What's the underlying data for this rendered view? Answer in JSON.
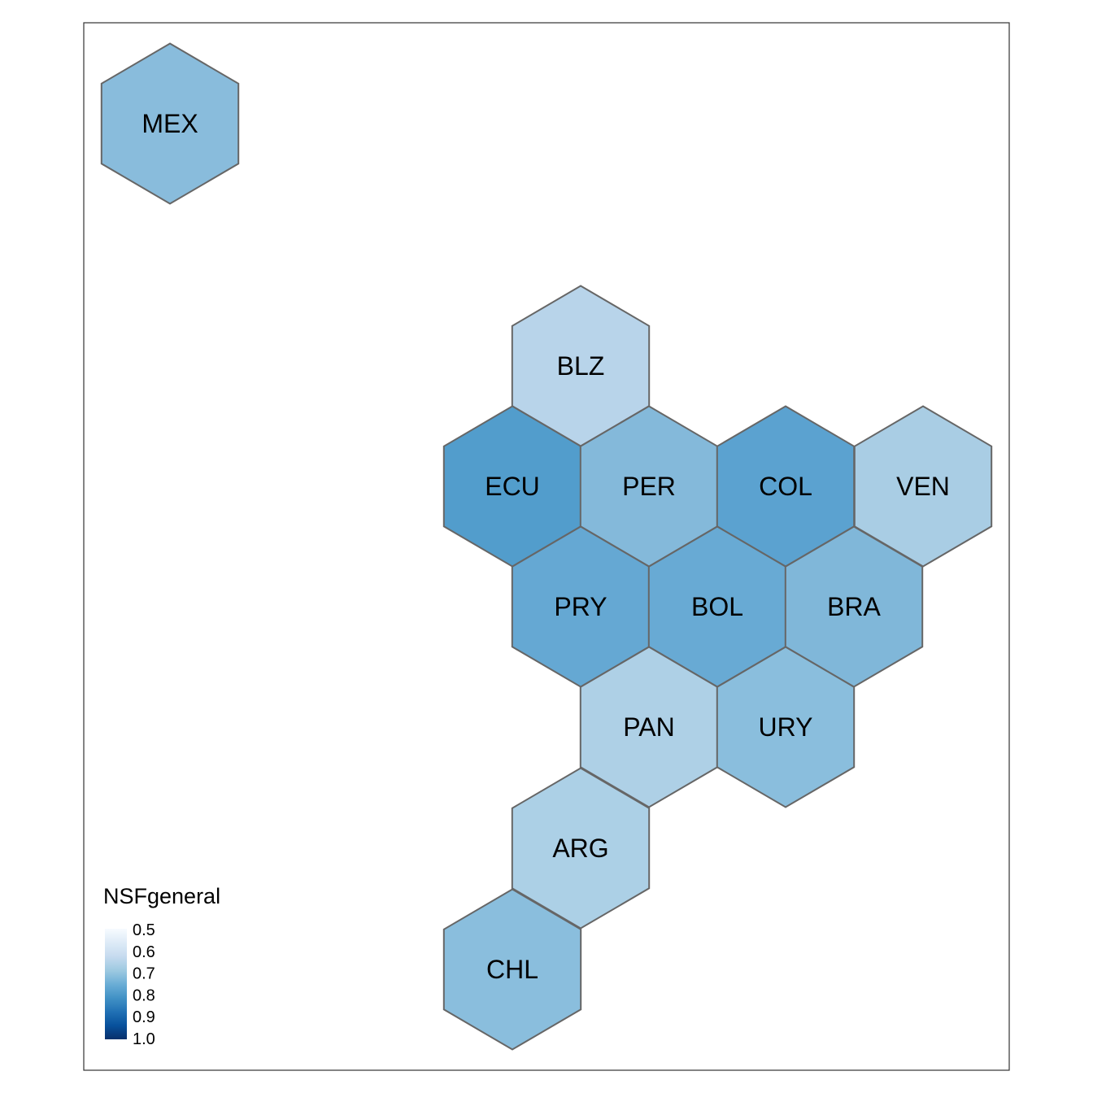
{
  "chart_data": {
    "type": "hexagon-choropleth",
    "legend": {
      "title": "NSFgeneral",
      "ticks": [
        "0.5",
        "0.6",
        "0.7",
        "0.8",
        "0.9",
        "1.0"
      ],
      "range": [
        0.5,
        1.0
      ],
      "palette": "Blues",
      "colors": [
        "#f7fbff",
        "#deebf7",
        "#c6dbef",
        "#9ecae1",
        "#6baed6",
        "#4292c6",
        "#2171b5",
        "#08519c",
        "#08306b"
      ]
    },
    "regions": [
      {
        "code": "MEX",
        "value": 0.75,
        "color": "#89bcdc"
      },
      {
        "code": "BLZ",
        "value": 0.69,
        "color": "#b8d4ea"
      },
      {
        "code": "ECU",
        "value": 0.8,
        "color": "#529dcc"
      },
      {
        "code": "PER",
        "value": 0.75,
        "color": "#84b9da"
      },
      {
        "code": "COL",
        "value": 0.79,
        "color": "#5ba2d0"
      },
      {
        "code": "VEN",
        "value": 0.71,
        "color": "#a9cde4"
      },
      {
        "code": "PRY",
        "value": 0.78,
        "color": "#65a8d3"
      },
      {
        "code": "BOL",
        "value": 0.78,
        "color": "#68aad4"
      },
      {
        "code": "BRA",
        "value": 0.76,
        "color": "#80b7d9"
      },
      {
        "code": "PAN",
        "value": 0.71,
        "color": "#aed0e6"
      },
      {
        "code": "URY",
        "value": 0.75,
        "color": "#8abedd"
      },
      {
        "code": "ARG",
        "value": 0.71,
        "color": "#acd0e6"
      },
      {
        "code": "CHL",
        "value": 0.75,
        "color": "#8abedd"
      }
    ]
  }
}
